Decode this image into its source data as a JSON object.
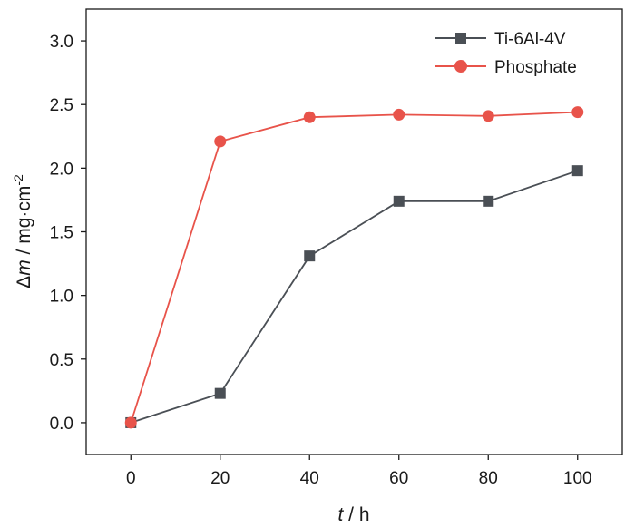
{
  "chart_data": {
    "type": "line",
    "x": [
      0,
      20,
      40,
      60,
      80,
      100
    ],
    "series": [
      {
        "name": "Ti-6Al-4V",
        "values": [
          0.0,
          0.23,
          1.31,
          1.74,
          1.74,
          1.98
        ],
        "color": "#4a4f55",
        "marker": "square"
      },
      {
        "name": "Phosphate",
        "values": [
          0.0,
          2.21,
          2.4,
          2.42,
          2.41,
          2.44
        ],
        "color": "#e8534a",
        "marker": "circle"
      }
    ],
    "xlabel": {
      "italic": "t",
      "rest": " / h"
    },
    "ylabel": {
      "prefix": "Δ",
      "italic": "m",
      "rest": " / mg·cm",
      "sup": "-2"
    },
    "xticks": [
      "0",
      "20",
      "40",
      "60",
      "80",
      "100"
    ],
    "yticks": [
      "0.0",
      "0.5",
      "1.0",
      "1.5",
      "2.0",
      "2.5",
      "3.0"
    ],
    "xlim": [
      -10,
      110
    ],
    "ylim": [
      -0.25,
      3.25
    ],
    "grid": false,
    "legend_position": "top-right"
  }
}
